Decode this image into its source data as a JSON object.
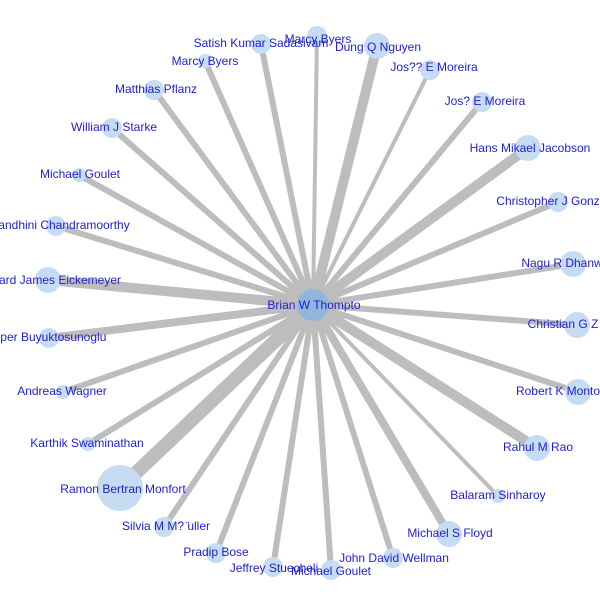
{
  "graph": {
    "type": "ego-network",
    "colors": {
      "edge": "#bdbdbd",
      "node": "#c6dcf2",
      "center_node": "#8fb7de",
      "label": "#1f1fcc",
      "background": "#ffffff"
    },
    "center": {
      "label": "Brian W Thompto",
      "size": "large"
    },
    "neighbors": [
      {
        "label": "Marcy Byers",
        "weight": 2,
        "size": 2
      },
      {
        "label": "Dung Q Nguyen",
        "weight": 5,
        "size": 3
      },
      {
        "label": "Jos?? E Moreira",
        "weight": 2,
        "size": 2
      },
      {
        "label": "Jos? E Moreira",
        "weight": 3,
        "size": 2
      },
      {
        "label": "Hans Mikael Jacobson",
        "weight": 5,
        "size": 3
      },
      {
        "label": "Christopher J Gonz",
        "weight": 3,
        "size": 2
      },
      {
        "label": "Nagu R Dhanw",
        "weight": 3,
        "size": 3
      },
      {
        "label": "Christian G Z",
        "weight": 3,
        "size": 3
      },
      {
        "label": "Robert K Monto",
        "weight": 3,
        "size": 3
      },
      {
        "label": "Rahul M Rao",
        "weight": 5,
        "size": 3
      },
      {
        "label": "Balaram Sinharoy",
        "weight": 2,
        "size": 1
      },
      {
        "label": "Michael S Floyd",
        "weight": 4,
        "size": 3
      },
      {
        "label": "John David Wellman",
        "weight": 3,
        "size": 2
      },
      {
        "label": "Michael Goulet",
        "weight": 3,
        "size": 2
      },
      {
        "label": "Jeffrey Stuecheli",
        "weight": 3,
        "size": 2
      },
      {
        "label": "Pradip Bose",
        "weight": 3,
        "size": 2
      },
      {
        "label": "Silvia M M? ̈uller",
        "weight": 3,
        "size": 2
      },
      {
        "label": "Ramon Bertran Monfort",
        "weight": 7,
        "size": 5
      },
      {
        "label": "Karthik Swaminathan",
        "weight": 3,
        "size": 1
      },
      {
        "label": "Andreas Wagner",
        "weight": 3,
        "size": 1
      },
      {
        "label": "lper Buyuktosunoglu",
        "weight": 4,
        "size": 2
      },
      {
        "label": "ard James Eickemeyer",
        "weight": 5,
        "size": 3
      },
      {
        "label": "andhini Chandramoorthy",
        "weight": 3,
        "size": 2
      },
      {
        "label": "Michael Goulet",
        "weight": 3,
        "size": 1
      },
      {
        "label": "William J Starke",
        "weight": 3,
        "size": 2
      },
      {
        "label": "Matthias Pflanz",
        "weight": 3,
        "size": 2
      },
      {
        "label": "Marcy Byers",
        "weight": 3,
        "size": 1
      },
      {
        "label": "Satish Kumar Sadasivam",
        "weight": 3,
        "size": 2
      }
    ]
  }
}
